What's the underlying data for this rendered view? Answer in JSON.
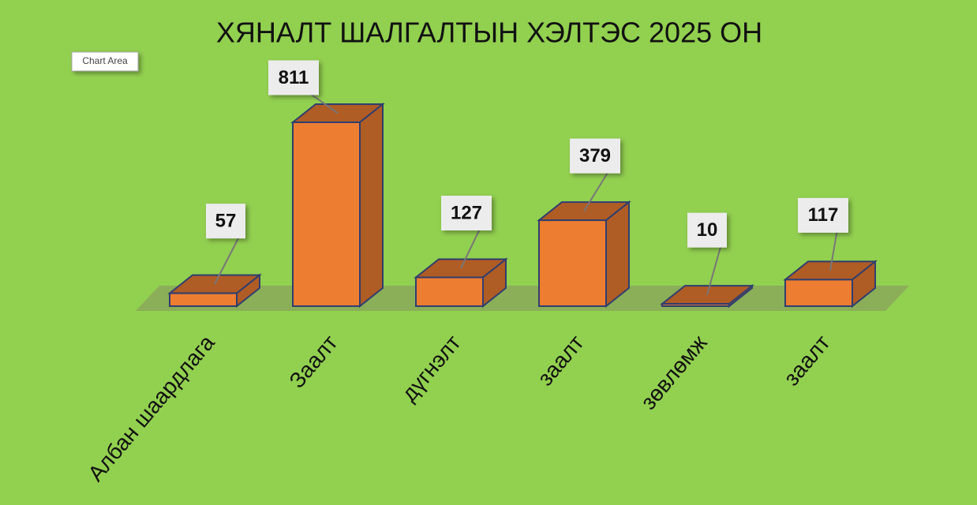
{
  "chart_data": {
    "type": "bar3d",
    "title": "ХЯНАЛТ ШАЛГАЛТЫН ХЭЛТЭС 2025 ОН",
    "tooltip": "Chart Area",
    "categories": [
      "Албан шаардлага",
      "Заалт",
      "дүгнэлт",
      "заалт",
      "зөвлөмж",
      "заалт"
    ],
    "values": [
      57,
      811,
      127,
      379,
      10,
      117
    ],
    "color": "#ed7d31",
    "background": "#92d050"
  }
}
